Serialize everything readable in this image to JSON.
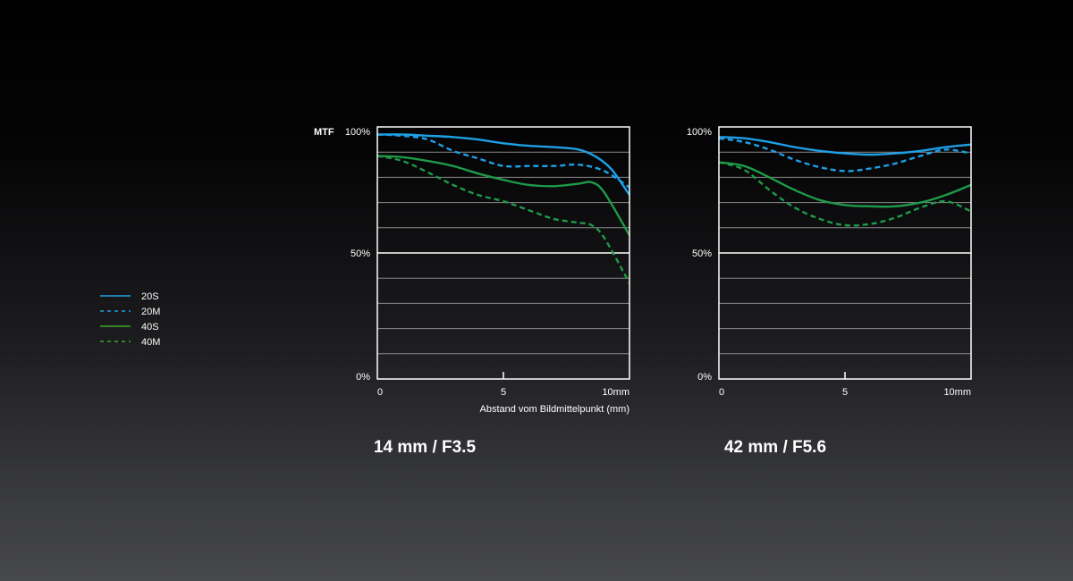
{
  "colors": {
    "blue": "#1ea0e6",
    "green": "#1e9a48",
    "frame": "#ffffff",
    "grid": "#8a8a8a"
  },
  "legend": [
    {
      "label": "20S",
      "color": "#1ea0e6",
      "dash": false
    },
    {
      "label": "20M",
      "color": "#1ea0e6",
      "dash": true
    },
    {
      "label": "40S",
      "color": "#3aa828",
      "dash": false
    },
    {
      "label": "40M",
      "color": "#3aa828",
      "dash": true
    }
  ],
  "mtf_label": "MTF",
  "chart_data": [
    {
      "type": "line",
      "caption": "14 mm / F3.5",
      "xlabel": "Abstand vom Bildmittelpunkt  (mm)",
      "ylabel": "MTF",
      "xlim": [
        0,
        10
      ],
      "ylim": [
        0,
        100
      ],
      "x_ticks": [
        "0",
        "5",
        "10mm"
      ],
      "y_ticks": [
        "100%",
        "50%",
        "0%"
      ],
      "grid_step": 10,
      "series": [
        {
          "name": "20S",
          "x": [
            0,
            1,
            2,
            3,
            4,
            5,
            6,
            7,
            8,
            8.7,
            9.3,
            10
          ],
          "values": [
            97,
            97,
            96.5,
            96,
            95,
            93.5,
            92.5,
            92,
            91,
            88,
            83,
            73
          ]
        },
        {
          "name": "20M",
          "x": [
            0,
            1,
            2,
            3,
            4,
            5,
            6,
            7,
            8,
            9,
            10
          ],
          "values": [
            97,
            96.5,
            95,
            90.5,
            87.5,
            84.5,
            84.5,
            84.5,
            85,
            82.5,
            76
          ]
        },
        {
          "name": "40S",
          "x": [
            0,
            1,
            2,
            3,
            4,
            5,
            6,
            7,
            8,
            8.5,
            9,
            10
          ],
          "values": [
            88.5,
            88,
            86.5,
            84.5,
            81.5,
            79,
            77,
            76.5,
            77.5,
            78,
            74,
            57
          ]
        },
        {
          "name": "40M",
          "x": [
            0,
            1,
            2,
            3,
            4,
            5,
            6,
            7,
            8,
            8.5,
            9,
            10
          ],
          "values": [
            88.5,
            86.5,
            82,
            77,
            73,
            70.5,
            67,
            63.5,
            62,
            61,
            56,
            38
          ]
        }
      ]
    },
    {
      "type": "line",
      "caption": "42 mm / F5.6",
      "xlabel": "",
      "ylabel": "",
      "xlim": [
        0,
        10
      ],
      "ylim": [
        0,
        100
      ],
      "x_ticks": [
        "0",
        "5",
        "10mm"
      ],
      "y_ticks": [
        "100%",
        "50%",
        "0%"
      ],
      "grid_step": 10,
      "series": [
        {
          "name": "20S",
          "x": [
            0,
            1,
            2,
            3,
            4,
            5,
            6,
            7,
            8,
            9,
            10
          ],
          "values": [
            96,
            95.5,
            94,
            92,
            90.5,
            89.5,
            89,
            89.5,
            90.5,
            92,
            93
          ]
        },
        {
          "name": "20M",
          "x": [
            0,
            1,
            2,
            3,
            4,
            5,
            6,
            7,
            8,
            9,
            10
          ],
          "values": [
            95.5,
            94,
            91,
            87,
            84,
            82.5,
            83.5,
            85.5,
            88.5,
            91,
            89.5
          ]
        },
        {
          "name": "40S",
          "x": [
            0,
            1,
            2,
            3,
            4,
            5,
            6,
            7,
            8,
            9,
            10
          ],
          "values": [
            86,
            84.5,
            80,
            75,
            71,
            69,
            68.5,
            68.5,
            70,
            73,
            77
          ]
        },
        {
          "name": "40M",
          "x": [
            0,
            1,
            2,
            3,
            4,
            5,
            6,
            7,
            8,
            9,
            10
          ],
          "values": [
            86,
            83,
            75,
            68,
            63.5,
            61,
            61.5,
            64,
            68,
            70.5,
            66.5
          ]
        }
      ]
    }
  ]
}
